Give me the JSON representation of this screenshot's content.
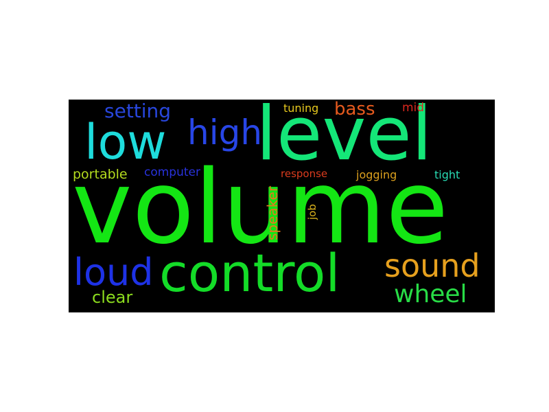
{
  "word_cloud": {
    "background": "#000000",
    "words": {
      "volume": {
        "text": "volume",
        "color": "#14e614"
      },
      "level": {
        "text": "level",
        "color": "#14e678"
      },
      "control": {
        "text": "control",
        "color": "#14dc28"
      },
      "low": {
        "text": "low",
        "color": "#1edcdc"
      },
      "high": {
        "text": "high",
        "color": "#2846e6"
      },
      "loud": {
        "text": "loud",
        "color": "#1e32e6"
      },
      "sound": {
        "text": "sound",
        "color": "#e6a01e"
      },
      "wheel": {
        "text": "wheel",
        "color": "#28dc46"
      },
      "setting": {
        "text": "setting",
        "color": "#2846dc"
      },
      "bass": {
        "text": "bass",
        "color": "#e65a1e"
      },
      "clear": {
        "text": "clear",
        "color": "#8cdc1e"
      },
      "speaker": {
        "text": "speaker",
        "color": "#e6781e"
      },
      "portable": {
        "text": "portable",
        "color": "#b4dc1e"
      },
      "computer": {
        "text": "computer",
        "color": "#2832dc"
      },
      "response": {
        "text": "response",
        "color": "#dc3c1e"
      },
      "jogging": {
        "text": "jogging",
        "color": "#dca01e"
      },
      "tight": {
        "text": "tight",
        "color": "#28dcb4"
      },
      "tuning": {
        "text": "tuning",
        "color": "#e6c81e"
      },
      "mid": {
        "text": "mid",
        "color": "#dc281e"
      },
      "job": {
        "text": "job",
        "color": "#dcb41e"
      }
    }
  }
}
